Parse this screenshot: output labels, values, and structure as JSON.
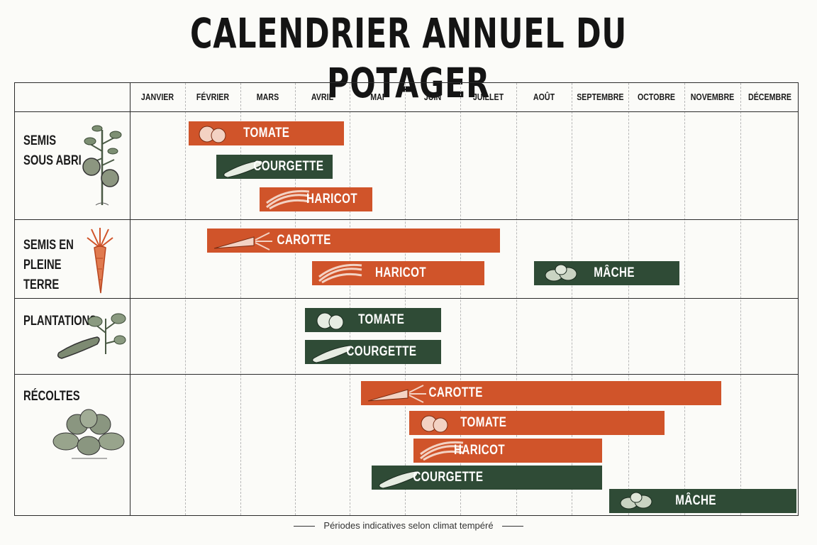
{
  "title": "CALENDRIER ANNUEL DU POTAGER",
  "months": [
    "JANVIER",
    "FÉVRIER",
    "MARS",
    "AVRIL",
    "MAI",
    "JUIN",
    "JUILLET",
    "AOÛT",
    "SEPTEMBRE",
    "OCTOBRE",
    "NOVEMBRE",
    "DÉCEMBRE"
  ],
  "rows": [
    {
      "label_line1": "SEMIS",
      "label_line2": "SOUS ABRI",
      "illustration": "tomato-plant-icon"
    },
    {
      "label_line1": "SEMIS EN",
      "label_line2": "PLEINE TERRE",
      "illustration": "carrot-icon"
    },
    {
      "label_line1": "PLANTATIONS",
      "label_line2": "",
      "illustration": "zucchini-plant-icon"
    },
    {
      "label_line1": "RÉCOLTES",
      "label_line2": "",
      "illustration": "lettuce-icon"
    }
  ],
  "bars": {
    "r1_tomate": "TOMATE",
    "r1_courgette": "COURGETTE",
    "r1_haricot": "HARICOT",
    "r2_carotte": "CAROTTE",
    "r2_haricot": "HARICOT",
    "r2_mache": "MÂCHE",
    "r3_tomate": "TOMATE",
    "r3_courgette": "COURGETTE",
    "r4_carotte": "CAROTTE",
    "r4_tomate": "TOMATE",
    "r4_haricot": "HARICOT",
    "r4_courgette": "COURGETTE",
    "r4_mache": "MÂCHE"
  },
  "colors": {
    "orange": "#d0542a",
    "green": "#2f4b36"
  },
  "footer": "Périodes indicatives selon climat tempéré"
}
